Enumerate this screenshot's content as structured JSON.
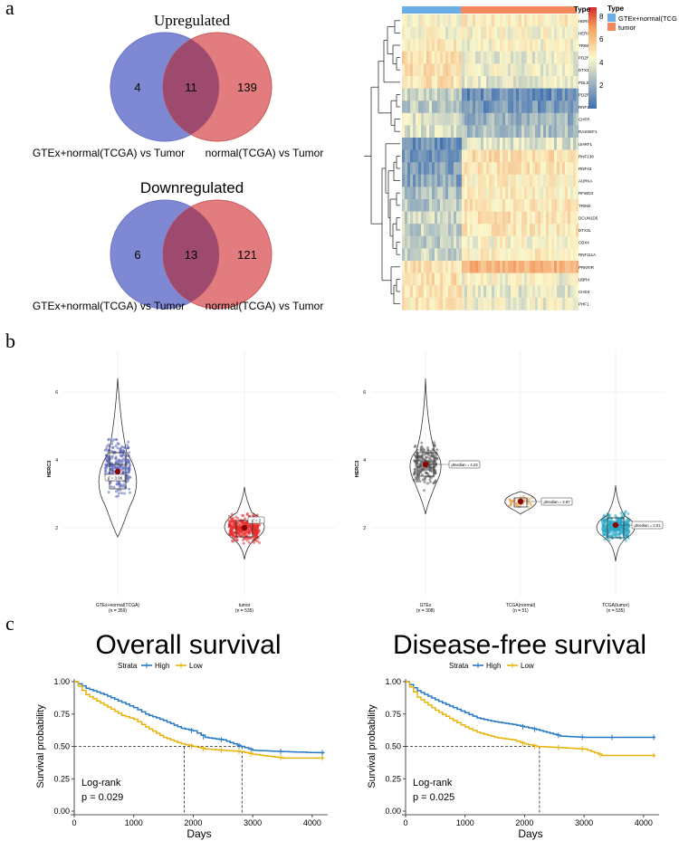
{
  "panels": {
    "a": "a",
    "b": "b",
    "c": "c"
  },
  "venn_up": {
    "title": "Upregulated",
    "left_only": "4",
    "overlap": "11",
    "right_only": "139",
    "left_label": "GTEx+normal(TCGA) vs Tumor",
    "right_label": "normal(TCGA) vs Tumor",
    "colors": {
      "left": "#7f88d2",
      "right": "#df6e70"
    }
  },
  "venn_down": {
    "title": "Downregulated",
    "left_only": "6",
    "overlap": "13",
    "right_only": "121",
    "left_label": "GTEx+normal(TCGA) vs Tumor",
    "right_label": "normal(TCGA) vs Tumor"
  },
  "heatmap": {
    "genes": [
      "HERC3",
      "HERC1",
      "TRIM3",
      "PDZRN3",
      "DTX3",
      "PDLIM2",
      "PDZRN4",
      "RNF150",
      "CHFR",
      "RASSEF1",
      "UHRF1",
      "RNF138",
      "RNF43",
      "AURKA",
      "RFWD3",
      "TRIM2",
      "DCUN1D5",
      "DTX3L",
      "CBX4",
      "RNF111A",
      "PRKRIR",
      "UBR4",
      "CHD3",
      "PHF1"
    ],
    "legend_title": "Type",
    "legend_items": [
      {
        "label": "GTEx+normal(TCGA)",
        "color": "#6aaee8"
      },
      {
        "label": "tumor",
        "color": "#f4885b"
      }
    ],
    "scale_ticks": [
      "8",
      "6",
      "4",
      "2"
    ]
  },
  "violin_left": {
    "ylabel": "HERC3",
    "yticks": [
      "6",
      "4",
      "2"
    ],
    "groups": [
      {
        "name": "GTEx+normal(TCGA)",
        "n": "(n = 359)",
        "value": 3.96,
        "label": "μ̂ = 3.96"
      },
      {
        "name": "tumor",
        "n": "(n = 535)",
        "value": 2.0,
        "label": "μ̂ = 2"
      }
    ],
    "ylim": [
      1,
      7
    ]
  },
  "violin_right": {
    "ylabel": "HERC3",
    "yticks": [
      "6",
      "4",
      "2"
    ],
    "groups": [
      {
        "name": "GTEx",
        "n": "(n = 308)",
        "value": 4.23,
        "label": "μ̂median = 4.23"
      },
      {
        "name": "TCGA(normal)",
        "n": "(n = 51)",
        "value": 2.87,
        "label": "μ̂median = 2.87"
      },
      {
        "name": "TCGA(tumor)",
        "n": "(n = 535)",
        "value": 2.01,
        "label": "μ̂median = 2.01"
      }
    ],
    "ylim": [
      1,
      7
    ]
  },
  "chart_data": [
    {
      "type": "line",
      "title": "Overall survival",
      "legend_title": "Strata",
      "series": [
        {
          "name": "High",
          "color": "#2678c4",
          "x": [
            0,
            200,
            500,
            800,
            1000,
            1200,
            1500,
            1800,
            2000,
            2200,
            2500,
            2800,
            3000,
            3500,
            4200
          ],
          "y": [
            1.0,
            0.95,
            0.9,
            0.84,
            0.8,
            0.75,
            0.7,
            0.64,
            0.62,
            0.57,
            0.55,
            0.5,
            0.47,
            0.46,
            0.45
          ]
        },
        {
          "name": "Low",
          "color": "#e8b40a",
          "x": [
            0,
            200,
            500,
            800,
            1000,
            1200,
            1500,
            1800,
            2000,
            2200,
            2500,
            2800,
            3000,
            3500,
            4200
          ],
          "y": [
            1.0,
            0.9,
            0.82,
            0.74,
            0.71,
            0.65,
            0.57,
            0.52,
            0.5,
            0.48,
            0.47,
            0.46,
            0.44,
            0.41,
            0.41
          ]
        }
      ],
      "xlabel": "Days",
      "ylabel": "Survival probability",
      "xticks": [
        0,
        1000,
        2000,
        3000,
        4000
      ],
      "yticks": [
        "0.00",
        "0.25",
        "0.50",
        "0.75",
        "1.00"
      ],
      "xlim": [
        0,
        4200
      ],
      "ylim": [
        0,
        1
      ],
      "median_lines": [
        1850,
        2820
      ],
      "annotation": [
        "Log-rank",
        "p = 0.029"
      ]
    },
    {
      "type": "line",
      "title": "Disease-free survival",
      "legend_title": "Strata",
      "series": [
        {
          "name": "High",
          "color": "#2678c4",
          "x": [
            0,
            200,
            500,
            800,
            1000,
            1200,
            1500,
            1800,
            2000,
            2200,
            2600,
            3000,
            3500,
            4200
          ],
          "y": [
            1.0,
            0.93,
            0.86,
            0.8,
            0.76,
            0.72,
            0.69,
            0.67,
            0.65,
            0.63,
            0.58,
            0.57,
            0.57,
            0.57
          ]
        },
        {
          "name": "Low",
          "color": "#e8b40a",
          "x": [
            0,
            200,
            500,
            800,
            1000,
            1200,
            1500,
            1800,
            2000,
            2200,
            2600,
            3000,
            3300,
            4200
          ],
          "y": [
            1.0,
            0.88,
            0.78,
            0.7,
            0.65,
            0.61,
            0.57,
            0.55,
            0.52,
            0.5,
            0.49,
            0.48,
            0.43,
            0.43
          ]
        }
      ],
      "xlabel": "Days",
      "ylabel": "Survival probability",
      "xticks": [
        0,
        1000,
        2000,
        3000,
        4000
      ],
      "yticks": [
        "0.00",
        "0.25",
        "0.50",
        "0.75",
        "1.00"
      ],
      "xlim": [
        0,
        4200
      ],
      "ylim": [
        0,
        1
      ],
      "median_lines": [
        2250
      ],
      "annotation": [
        "Log-rank",
        "p = 0.025"
      ]
    }
  ]
}
